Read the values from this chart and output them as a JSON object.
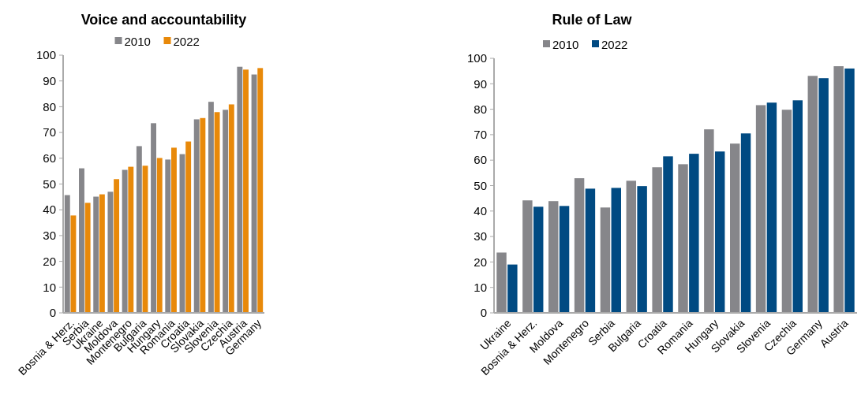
{
  "chart_data": [
    {
      "type": "bar",
      "title": "Voice and accountability",
      "categories": [
        "Bosnia & Herz.",
        "Serbia",
        "Ukraine",
        "Moldova",
        "Montenegro",
        "Bulgaria",
        "Hungary",
        "Romania",
        "Croatia",
        "Slovakia",
        "Slovenia",
        "Czechia",
        "Austria",
        "Germany"
      ],
      "series": [
        {
          "name": "2010",
          "color": "#86868a",
          "values": [
            45.7,
            56.1,
            45.1,
            47.0,
            55.5,
            64.7,
            73.6,
            59.5,
            61.6,
            75.1,
            81.9,
            78.8,
            95.5,
            92.5
          ]
        },
        {
          "name": "2022",
          "color": "#e8890a",
          "values": [
            37.8,
            42.7,
            46.0,
            51.9,
            56.7,
            57.1,
            60.1,
            64.1,
            66.5,
            75.6,
            77.9,
            80.9,
            94.4,
            95.0
          ]
        }
      ],
      "ylim": [
        0,
        100
      ],
      "yticks": [
        0,
        10,
        20,
        30,
        40,
        50,
        60,
        70,
        80,
        90,
        100
      ],
      "grid": false,
      "legend": "top"
    },
    {
      "type": "bar",
      "title": "Rule of Law",
      "categories": [
        "Ukraine",
        "Bosnia & Herz.",
        "Moldova",
        "Montenegro",
        "Serbia",
        "Bulgaria",
        "Croatia",
        "Romania",
        "Hungary",
        "Slovakia",
        "Slovenia",
        "Czechia",
        "Germany",
        "Austria"
      ],
      "series": [
        {
          "name": "2010",
          "color": "#86868a",
          "values": [
            23.7,
            44.2,
            43.9,
            52.9,
            41.4,
            51.9,
            57.2,
            58.4,
            72.1,
            66.5,
            81.6,
            79.8,
            93.1,
            96.9
          ]
        },
        {
          "name": "2022",
          "color": "#004a82",
          "values": [
            19.0,
            41.7,
            42.0,
            48.8,
            49.1,
            49.8,
            61.5,
            62.5,
            63.4,
            70.5,
            82.6,
            83.5,
            92.2,
            96.0
          ]
        }
      ],
      "ylim": [
        0,
        100
      ],
      "yticks": [
        0,
        10,
        20,
        30,
        40,
        50,
        60,
        70,
        80,
        90,
        100
      ],
      "grid": false,
      "legend": "top"
    }
  ]
}
